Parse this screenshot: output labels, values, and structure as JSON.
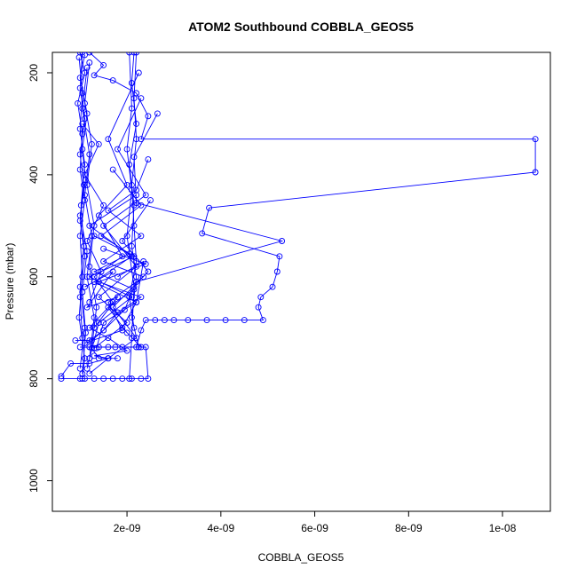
{
  "chart_data": {
    "type": "line",
    "title": "ATOM2 Southbound COBBLA_GEOS5",
    "xlabel": "COBBLA_GEOS5",
    "ylabel": "Pressure (mbar)",
    "x_ticks": [
      {
        "value": 2e-09,
        "label": "2e-09"
      },
      {
        "value": 4e-09,
        "label": "4e-09"
      },
      {
        "value": 6e-09,
        "label": "6e-09"
      },
      {
        "value": 8e-09,
        "label": "8e-09"
      },
      {
        "value": 1e-08,
        "label": "1e-08"
      }
    ],
    "y_ticks": [
      {
        "value": 200,
        "label": "200"
      },
      {
        "value": 400,
        "label": "400"
      },
      {
        "value": 600,
        "label": "600"
      },
      {
        "value": 800,
        "label": "800"
      },
      {
        "value": 1000,
        "label": "1000"
      }
    ],
    "xlim": [
      4.1e-10,
      1.102e-08
    ],
    "ylim": [
      160,
      1060
    ],
    "y_reversed": true,
    "marker": "open-circle",
    "line_color": "#0000ff",
    "series": [
      {
        "points": [
          [
            1.2e-09,
            160
          ],
          [
            1.5e-09,
            185
          ],
          [
            1.3e-09,
            205
          ],
          [
            1.7e-09,
            215
          ],
          [
            2.2e-09,
            240
          ],
          [
            2.45e-09,
            285
          ],
          [
            2.3e-09,
            330
          ],
          [
            1.07e-08,
            330
          ],
          [
            1.07e-08,
            395
          ],
          [
            3.75e-09,
            465
          ],
          [
            3.6e-09,
            515
          ],
          [
            5.25e-09,
            560
          ],
          [
            5.2e-09,
            590
          ],
          [
            5.1e-09,
            620
          ],
          [
            4.85e-09,
            640
          ],
          [
            4.8e-09,
            660
          ],
          [
            4.9e-09,
            685
          ],
          [
            4.5e-09,
            685
          ],
          [
            4.1e-09,
            685
          ],
          [
            3.7e-09,
            685
          ],
          [
            3.3e-09,
            685
          ],
          [
            3e-09,
            685
          ],
          [
            2.8e-09,
            685
          ],
          [
            2.6e-09,
            685
          ],
          [
            2.4e-09,
            685
          ],
          [
            2.3e-09,
            705
          ],
          [
            2.2e-09,
            738
          ],
          [
            2.4e-09,
            738
          ],
          [
            2.45e-09,
            800
          ],
          [
            2.3e-09,
            800
          ],
          [
            2.1e-09,
            800
          ],
          [
            1.9e-09,
            800
          ],
          [
            1.7e-09,
            800
          ],
          [
            1.5e-09,
            800
          ],
          [
            1.3e-09,
            800
          ],
          [
            1.1e-09,
            800
          ],
          [
            1e-09,
            800
          ],
          [
            6e-10,
            800
          ]
        ]
      },
      {
        "points": [
          [
            2.65e-09,
            280
          ],
          [
            2.15e-09,
            365
          ],
          [
            2.2e-09,
            455
          ],
          [
            5.3e-09,
            530
          ],
          [
            2.2e-09,
            610
          ],
          [
            1.95e-09,
            665
          ],
          [
            1.5e-09,
            705
          ],
          [
            1.2e-09,
            725
          ],
          [
            9e-10,
            725
          ]
        ]
      },
      {
        "points": [
          [
            2.15e-09,
            160
          ],
          [
            2.1e-09,
            220
          ],
          [
            2.2e-09,
            300
          ],
          [
            2.05e-09,
            380
          ],
          [
            2.15e-09,
            460
          ],
          [
            2.1e-09,
            540
          ],
          [
            2.2e-09,
            600
          ],
          [
            2.1e-09,
            680
          ],
          [
            2.25e-09,
            738
          ],
          [
            1.9e-09,
            738
          ],
          [
            1.6e-09,
            738
          ],
          [
            1.4e-09,
            738
          ],
          [
            1.2e-09,
            738
          ],
          [
            1e-09,
            738
          ]
        ]
      },
      {
        "points": [
          [
            2.2e-09,
            160
          ],
          [
            2.15e-09,
            250
          ],
          [
            2.2e-09,
            330
          ],
          [
            2.1e-09,
            420
          ],
          [
            2.15e-09,
            500
          ],
          [
            2.2e-09,
            570
          ],
          [
            2.05e-09,
            640
          ],
          [
            2.15e-09,
            700
          ]
        ]
      },
      {
        "points": [
          [
            2.05e-09,
            160
          ],
          [
            2.1e-09,
            270
          ],
          [
            2e-09,
            350
          ],
          [
            2.1e-09,
            430
          ],
          [
            2e-09,
            520
          ],
          [
            2.15e-09,
            620
          ],
          [
            2.1e-09,
            720
          ],
          [
            2.05e-09,
            800
          ]
        ]
      },
      {
        "points": [
          [
            1e-09,
            160
          ],
          [
            1.1e-09,
            200
          ],
          [
            9.5e-10,
            260
          ],
          [
            1.05e-09,
            320
          ],
          [
            1e-09,
            390
          ],
          [
            1.1e-09,
            450
          ],
          [
            1e-09,
            520
          ],
          [
            1.05e-09,
            600
          ],
          [
            9.8e-10,
            680
          ],
          [
            1.1e-09,
            760
          ],
          [
            1.05e-09,
            800
          ]
        ]
      },
      {
        "points": [
          [
            1.05e-09,
            160
          ],
          [
            1e-09,
            230
          ],
          [
            1.1e-09,
            290
          ],
          [
            1e-09,
            360
          ],
          [
            1.08e-09,
            420
          ],
          [
            1e-09,
            490
          ],
          [
            1.1e-09,
            560
          ],
          [
            1e-09,
            640
          ],
          [
            1.05e-09,
            720
          ]
        ]
      },
      {
        "points": [
          [
            9.8e-10,
            170
          ],
          [
            1.05e-09,
            240
          ],
          [
            1e-09,
            310
          ],
          [
            1.1e-09,
            380
          ],
          [
            1.02e-09,
            460
          ],
          [
            1.08e-09,
            540
          ],
          [
            1e-09,
            620
          ],
          [
            1.1e-09,
            700
          ],
          [
            1e-09,
            780
          ]
        ]
      },
      {
        "points": [
          [
            1.1e-09,
            165
          ],
          [
            1e-09,
            210
          ],
          [
            1.15e-09,
            280
          ],
          [
            1.05e-09,
            350
          ],
          [
            1.12e-09,
            410
          ],
          [
            1e-09,
            480
          ],
          [
            1.15e-09,
            550
          ],
          [
            1.05e-09,
            630
          ],
          [
            1.12e-09,
            710
          ],
          [
            1.05e-09,
            790
          ]
        ]
      },
      {
        "points": [
          [
            1.2e-09,
            180
          ],
          [
            1.1e-09,
            260
          ],
          [
            1.25e-09,
            340
          ],
          [
            1.15e-09,
            420
          ],
          [
            1.3e-09,
            500
          ],
          [
            1.2e-09,
            580
          ],
          [
            1.35e-09,
            660
          ],
          [
            1.25e-09,
            740
          ],
          [
            1.4e-09,
            760
          ],
          [
            1.6e-09,
            760
          ],
          [
            1.8e-09,
            760
          ]
        ]
      },
      {
        "points": [
          [
            1.15e-09,
            190
          ],
          [
            1.05e-09,
            270
          ],
          [
            1.2e-09,
            360
          ],
          [
            1.1e-09,
            440
          ],
          [
            1.25e-09,
            520
          ],
          [
            1.15e-09,
            600
          ],
          [
            1.3e-09,
            680
          ],
          [
            1.2e-09,
            760
          ],
          [
            1.15e-09,
            780
          ]
        ]
      },
      {
        "points": [
          [
            2.25e-09,
            200
          ],
          [
            1.6e-09,
            330
          ],
          [
            2e-09,
            420
          ],
          [
            1.4e-09,
            480
          ],
          [
            1.9e-09,
            560
          ],
          [
            1.3e-09,
            600
          ],
          [
            1.7e-09,
            650
          ],
          [
            1.2e-09,
            700
          ]
        ]
      },
      {
        "points": [
          [
            2.3e-09,
            250
          ],
          [
            1.8e-09,
            350
          ],
          [
            2.4e-09,
            440
          ],
          [
            1.5e-09,
            500
          ],
          [
            2.2e-09,
            580
          ],
          [
            1.4e-09,
            640
          ],
          [
            2e-09,
            690
          ],
          [
            1.3e-09,
            740
          ]
        ]
      },
      {
        "points": [
          [
            2.45e-09,
            370
          ],
          [
            2.2e-09,
            430
          ],
          [
            1.6e-09,
            470
          ],
          [
            2.3e-09,
            520
          ],
          [
            1.5e-09,
            570
          ],
          [
            2.35e-09,
            600
          ],
          [
            1.6e-09,
            650
          ],
          [
            1.9e-09,
            705
          ],
          [
            1.1e-09,
            730
          ]
        ]
      },
      {
        "points": [
          [
            2.2e-09,
            440
          ],
          [
            1.2e-09,
            500
          ],
          [
            2.1e-09,
            560
          ],
          [
            1.3e-09,
            610
          ],
          [
            2.2e-09,
            650
          ],
          [
            1.5e-09,
            690
          ],
          [
            1.35e-09,
            740
          ]
        ]
      },
      {
        "points": [
          [
            2.5e-09,
            450
          ],
          [
            1.9e-09,
            530
          ],
          [
            2.45e-09,
            590
          ],
          [
            1.7e-09,
            660
          ],
          [
            2.2e-09,
            720
          ],
          [
            1.6e-09,
            760
          ],
          [
            1.2e-09,
            790
          ]
        ]
      },
      {
        "points": [
          [
            1.7e-09,
            390
          ],
          [
            2.3e-09,
            460
          ],
          [
            1.45e-09,
            520
          ],
          [
            2.15e-09,
            560
          ],
          [
            1.2e-09,
            600
          ],
          [
            2.1e-09,
            640
          ],
          [
            1.4e-09,
            690
          ],
          [
            1.2e-09,
            760
          ]
        ]
      },
      {
        "points": [
          [
            1.3e-09,
            520
          ],
          [
            2.05e-09,
            555
          ],
          [
            1.3e-09,
            590
          ],
          [
            2.15e-09,
            625
          ],
          [
            1.6e-09,
            660
          ],
          [
            2e-09,
            710
          ]
        ]
      },
      {
        "points": [
          [
            1.5e-09,
            545
          ],
          [
            2.4e-09,
            575
          ],
          [
            1.4e-09,
            610
          ],
          [
            2.3e-09,
            640
          ],
          [
            1.8e-09,
            670
          ],
          [
            1.5e-09,
            705
          ],
          [
            1.25e-09,
            725
          ]
        ]
      },
      {
        "points": [
          [
            1.2e-09,
            700
          ],
          [
            1.6e-09,
            720
          ],
          [
            2e-09,
            745
          ],
          [
            1.3e-09,
            755
          ],
          [
            1.6e-09,
            760
          ],
          [
            1.2e-09,
            770
          ],
          [
            8e-10,
            770
          ],
          [
            6e-10,
            795
          ]
        ]
      },
      {
        "points": [
          [
            1.8e-09,
            600
          ],
          [
            2.35e-09,
            570
          ],
          [
            2.2e-09,
            650
          ],
          [
            1.9e-09,
            700
          ],
          [
            2.3e-09,
            738
          ],
          [
            1.75e-09,
            738
          ]
        ]
      },
      {
        "points": [
          [
            1.05e-09,
            300
          ],
          [
            1.4e-09,
            340
          ],
          [
            1.1e-09,
            400
          ],
          [
            1.5e-09,
            460
          ],
          [
            1.15e-09,
            530
          ],
          [
            1.45e-09,
            590
          ],
          [
            1.2e-09,
            650
          ]
        ]
      },
      {
        "points": [
          [
            1.1e-09,
            620
          ],
          [
            1.7e-09,
            590
          ],
          [
            1.15e-09,
            660
          ],
          [
            1.8e-09,
            640
          ],
          [
            1.3e-09,
            700
          ]
        ]
      }
    ]
  }
}
